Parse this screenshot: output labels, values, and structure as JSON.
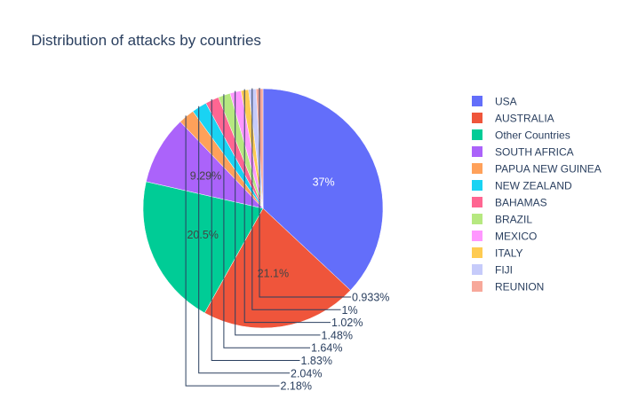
{
  "chart_data": {
    "type": "pie",
    "title": "Distribution of attacks by countries",
    "legend_position": "right",
    "direction": "clockwise",
    "slices": [
      {
        "label": "USA",
        "percent": 37,
        "percent_label": "37%",
        "color": "#636efa",
        "text_color": "#ffffff"
      },
      {
        "label": "AUSTRALIA",
        "percent": 21.1,
        "percent_label": "21.1%",
        "color": "#ef553b",
        "text_color": "#444444"
      },
      {
        "label": "Other Countries",
        "percent": 20.5,
        "percent_label": "20.5%",
        "color": "#00cc96",
        "text_color": "#444444"
      },
      {
        "label": "SOUTH AFRICA",
        "percent": 9.29,
        "percent_label": "9.29%",
        "color": "#ab63fa",
        "text_color": "#444444"
      },
      {
        "label": "PAPUA NEW GUINEA",
        "percent": 2.18,
        "percent_label": "2.18%",
        "color": "#ffa15a",
        "text_color": "#2a3f5f"
      },
      {
        "label": "NEW ZEALAND",
        "percent": 2.04,
        "percent_label": "2.04%",
        "color": "#19d3f3",
        "text_color": "#2a3f5f"
      },
      {
        "label": "BAHAMAS",
        "percent": 1.83,
        "percent_label": "1.83%",
        "color": "#ff6692",
        "text_color": "#2a3f5f"
      },
      {
        "label": "BRAZIL",
        "percent": 1.64,
        "percent_label": "1.64%",
        "color": "#b6e880",
        "text_color": "#2a3f5f"
      },
      {
        "label": "MEXICO",
        "percent": 1.48,
        "percent_label": "1.48%",
        "color": "#ff97ff",
        "text_color": "#2a3f5f"
      },
      {
        "label": "ITALY",
        "percent": 1.02,
        "percent_label": "1.02%",
        "color": "#fecb52",
        "text_color": "#2a3f5f"
      },
      {
        "label": "FIJI",
        "percent": 1,
        "percent_label": "1%",
        "color": "#c6cbfa",
        "text_color": "#2a3f5f"
      },
      {
        "label": "REUNION",
        "percent": 0.933,
        "percent_label": "0.933%",
        "color": "#f7a89a",
        "text_color": "#2a3f5f"
      }
    ]
  }
}
